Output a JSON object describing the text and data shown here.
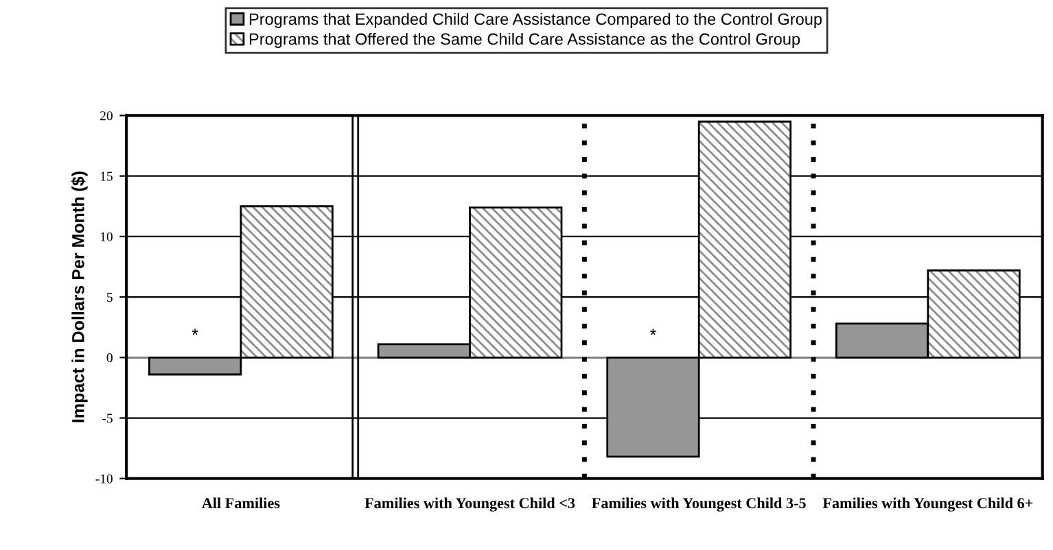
{
  "chart_data": {
    "type": "bar",
    "ylabel": "Impact in Dollars Per Month ($)",
    "categories": [
      "All Families",
      "Families with Youngest Child <3",
      "Families with Youngest Child 3-5",
      "Families with Youngest Child 6+"
    ],
    "series": [
      {
        "name": "Programs that Expanded Child Care Assistance Compared to the Control Group",
        "color": "#969696",
        "values": [
          -1.4,
          1.1,
          -8.2,
          2.8
        ]
      },
      {
        "name": "Programs that Offered the Same Child Care Assistance as the Control Group",
        "color": "#000000",
        "values": [
          12.5,
          12.4,
          19.5,
          7.2
        ]
      }
    ],
    "ylim": [
      -10,
      20
    ],
    "yticks": [
      -10,
      -5,
      0,
      5,
      10,
      15,
      20
    ],
    "grid": "y",
    "legend": "top",
    "annotations": [
      "*",
      "*"
    ]
  }
}
